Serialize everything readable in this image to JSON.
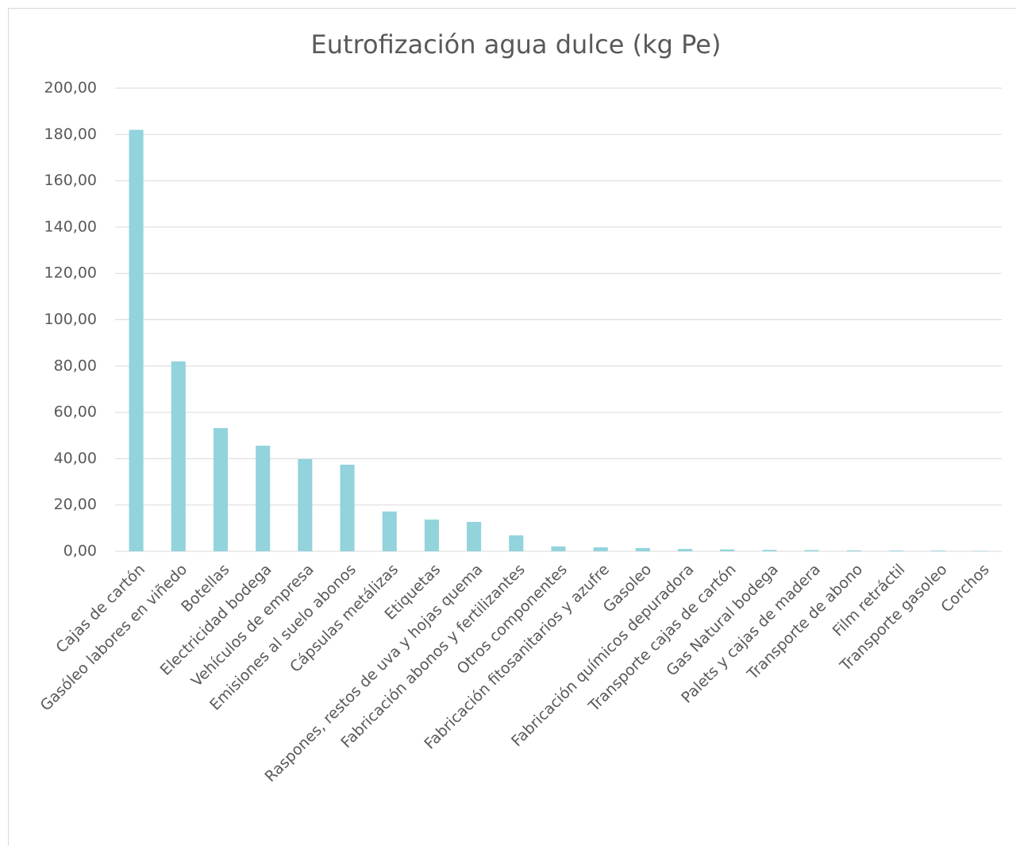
{
  "chart_data": {
    "type": "bar",
    "title": "Eutrofización agua dulce (kg Pe)",
    "categories": [
      "Cajas de cartón",
      "Gasóleo labores en viñedo",
      "Botellas",
      "Electricidad bodega",
      "Vehículos de empresa",
      "Emisiones al suelo abonos",
      "Cápsulas metálizas",
      "Etiquetas",
      "Raspones, restos de uva y hojas quema",
      "Fabricación abonos y fertilizantes",
      "Otros componentes",
      "Fabricación fitosanitarios y azufre",
      "Gasoleo",
      "Fabricación químicos depuradora",
      "Transporte cajas de cartón",
      "Gas Natural bodega",
      "Palets y cajas de madera",
      "Transporte de abono",
      "Film retráctil",
      "Transporte gasoleo",
      "Corchos"
    ],
    "values": [
      182,
      82,
      53.2,
      45.6,
      39.8,
      37.4,
      17.2,
      13.7,
      12.7,
      6.9,
      2.1,
      1.7,
      1.4,
      1.0,
      0.8,
      0.6,
      0.5,
      0.4,
      0.3,
      0.3,
      0.2
    ],
    "color": "#92d3dc",
    "ylim": [
      0,
      200
    ],
    "yticks": [
      {
        "value": 0,
        "label": "0,00"
      },
      {
        "value": 20,
        "label": "20,00"
      },
      {
        "value": 40,
        "label": "40,00"
      },
      {
        "value": 60,
        "label": "60,00"
      },
      {
        "value": 80,
        "label": "80,00"
      },
      {
        "value": 100,
        "label": "100,00"
      },
      {
        "value": 120,
        "label": "120,00"
      },
      {
        "value": 140,
        "label": "140,00"
      },
      {
        "value": 160,
        "label": "160,00"
      },
      {
        "value": 180,
        "label": "180,00"
      },
      {
        "value": 200,
        "label": "200,00"
      }
    ],
    "grid": true
  }
}
